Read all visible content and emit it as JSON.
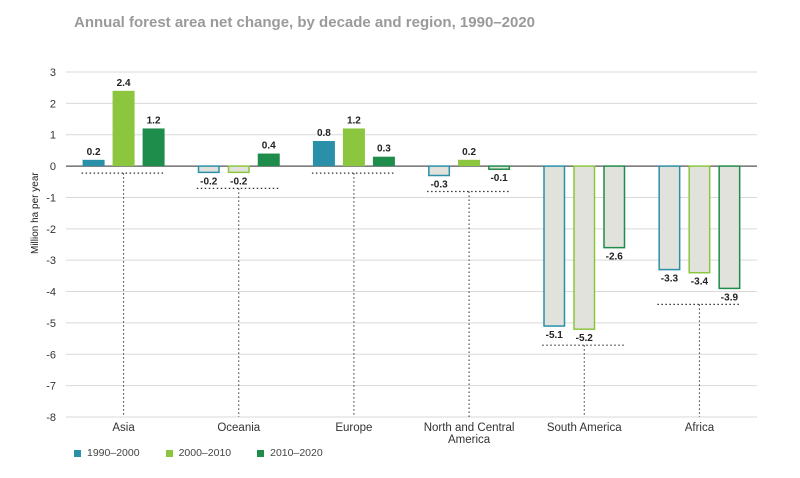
{
  "chart_data": {
    "type": "bar",
    "title": "Annual forest area net change, by decade and region, 1990–2020",
    "ylabel": "Million ha per year",
    "xlabel": "",
    "ylim": [
      -8,
      3
    ],
    "yticks": [
      3,
      2,
      1,
      0,
      -1,
      -2,
      -3,
      -4,
      -5,
      -6,
      -7,
      -8
    ],
    "categories": [
      "Asia",
      "Oceania",
      "Europe",
      "North and Central America",
      "South America",
      "Africa"
    ],
    "category_lines": [
      [
        "Asia"
      ],
      [
        "Oceania"
      ],
      [
        "Europe"
      ],
      [
        "North and Central",
        "America"
      ],
      [
        "South America"
      ],
      [
        "Africa"
      ]
    ],
    "series": [
      {
        "name": "1990–2000",
        "color": "#2a8fa8",
        "values": [
          0.2,
          -0.2,
          0.8,
          -0.3,
          -5.1,
          -3.3
        ]
      },
      {
        "name": "2000–2010",
        "color": "#8cc63f",
        "values": [
          2.4,
          -0.2,
          1.2,
          0.2,
          -5.2,
          -3.4
        ]
      },
      {
        "name": "2010–2020",
        "color": "#1e8c4a",
        "values": [
          1.2,
          0.4,
          0.3,
          -0.1,
          -2.6,
          -3.9
        ]
      }
    ],
    "value_labels": [
      [
        "0.2",
        "-0.2",
        "0.8",
        "-0.3",
        "-5.1",
        "-3.3"
      ],
      [
        "2.4",
        "-0.2",
        "1.2",
        "0.2",
        "-5.2",
        "-3.4"
      ],
      [
        "1.2",
        "0.4",
        "0.3",
        "-0.1",
        "-2.6",
        "-3.9"
      ]
    ],
    "negative_fill": "#e2e2dd",
    "grid": true,
    "legend": "bottom-left"
  }
}
